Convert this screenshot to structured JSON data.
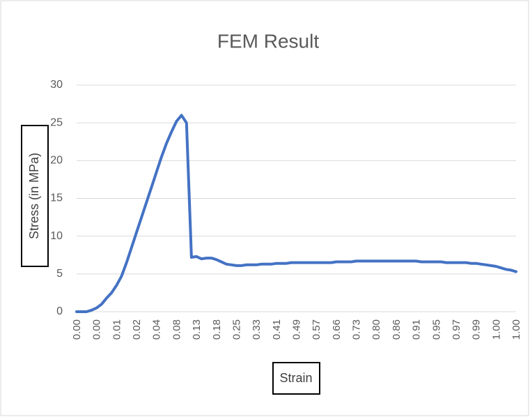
{
  "chart_data": {
    "type": "line",
    "title": "FEM Result",
    "x_label": "Strain",
    "y_label": "Stress (in MPa)",
    "categories": [
      "0.00",
      null,
      null,
      null,
      "0.00",
      null,
      null,
      null,
      "0.01",
      null,
      null,
      null,
      "0.02",
      null,
      null,
      null,
      "0.04",
      null,
      null,
      null,
      "0.08",
      null,
      null,
      null,
      "0.13",
      null,
      null,
      null,
      "0.18",
      null,
      null,
      null,
      "0.25",
      null,
      null,
      null,
      "0.33",
      null,
      null,
      null,
      "0.41",
      null,
      null,
      null,
      "0.49",
      null,
      null,
      null,
      "0.57",
      null,
      null,
      null,
      "0.66",
      null,
      null,
      null,
      "0.73",
      null,
      null,
      null,
      "0.80",
      null,
      null,
      null,
      "0.86",
      null,
      null,
      null,
      "0.91",
      null,
      null,
      null,
      "0.95",
      null,
      null,
      null,
      "0.97",
      null,
      null,
      null,
      "0.99",
      null,
      null,
      null,
      "1.00",
      null,
      null,
      null,
      "1.00"
    ],
    "series": [
      {
        "name": "Stress",
        "color": "#4472c4",
        "values": [
          0,
          0,
          0,
          0.2,
          0.5,
          1,
          1.8,
          2.5,
          3.5,
          4.7,
          6.5,
          8.5,
          10.5,
          12.5,
          14.5,
          16.5,
          18.5,
          20.5,
          22.3,
          23.8,
          25.2,
          26,
          25,
          7.2,
          7.3,
          7.0,
          7.1,
          7.1,
          6.9,
          6.6,
          6.3,
          6.2,
          6.1,
          6.1,
          6.2,
          6.2,
          6.2,
          6.3,
          6.3,
          6.3,
          6.4,
          6.4,
          6.4,
          6.5,
          6.5,
          6.5,
          6.5,
          6.5,
          6.5,
          6.5,
          6.5,
          6.5,
          6.6,
          6.6,
          6.6,
          6.6,
          6.7,
          6.7,
          6.7,
          6.7,
          6.7,
          6.7,
          6.7,
          6.7,
          6.7,
          6.7,
          6.7,
          6.7,
          6.7,
          6.6,
          6.6,
          6.6,
          6.6,
          6.6,
          6.5,
          6.5,
          6.5,
          6.5,
          6.5,
          6.4,
          6.4,
          6.3,
          6.2,
          6.1,
          6.0,
          5.8,
          5.6,
          5.5,
          5.3
        ]
      }
    ],
    "ylim": [
      0,
      30
    ],
    "yticks": [
      0,
      5,
      10,
      15,
      20,
      25,
      30
    ],
    "grid": true
  }
}
